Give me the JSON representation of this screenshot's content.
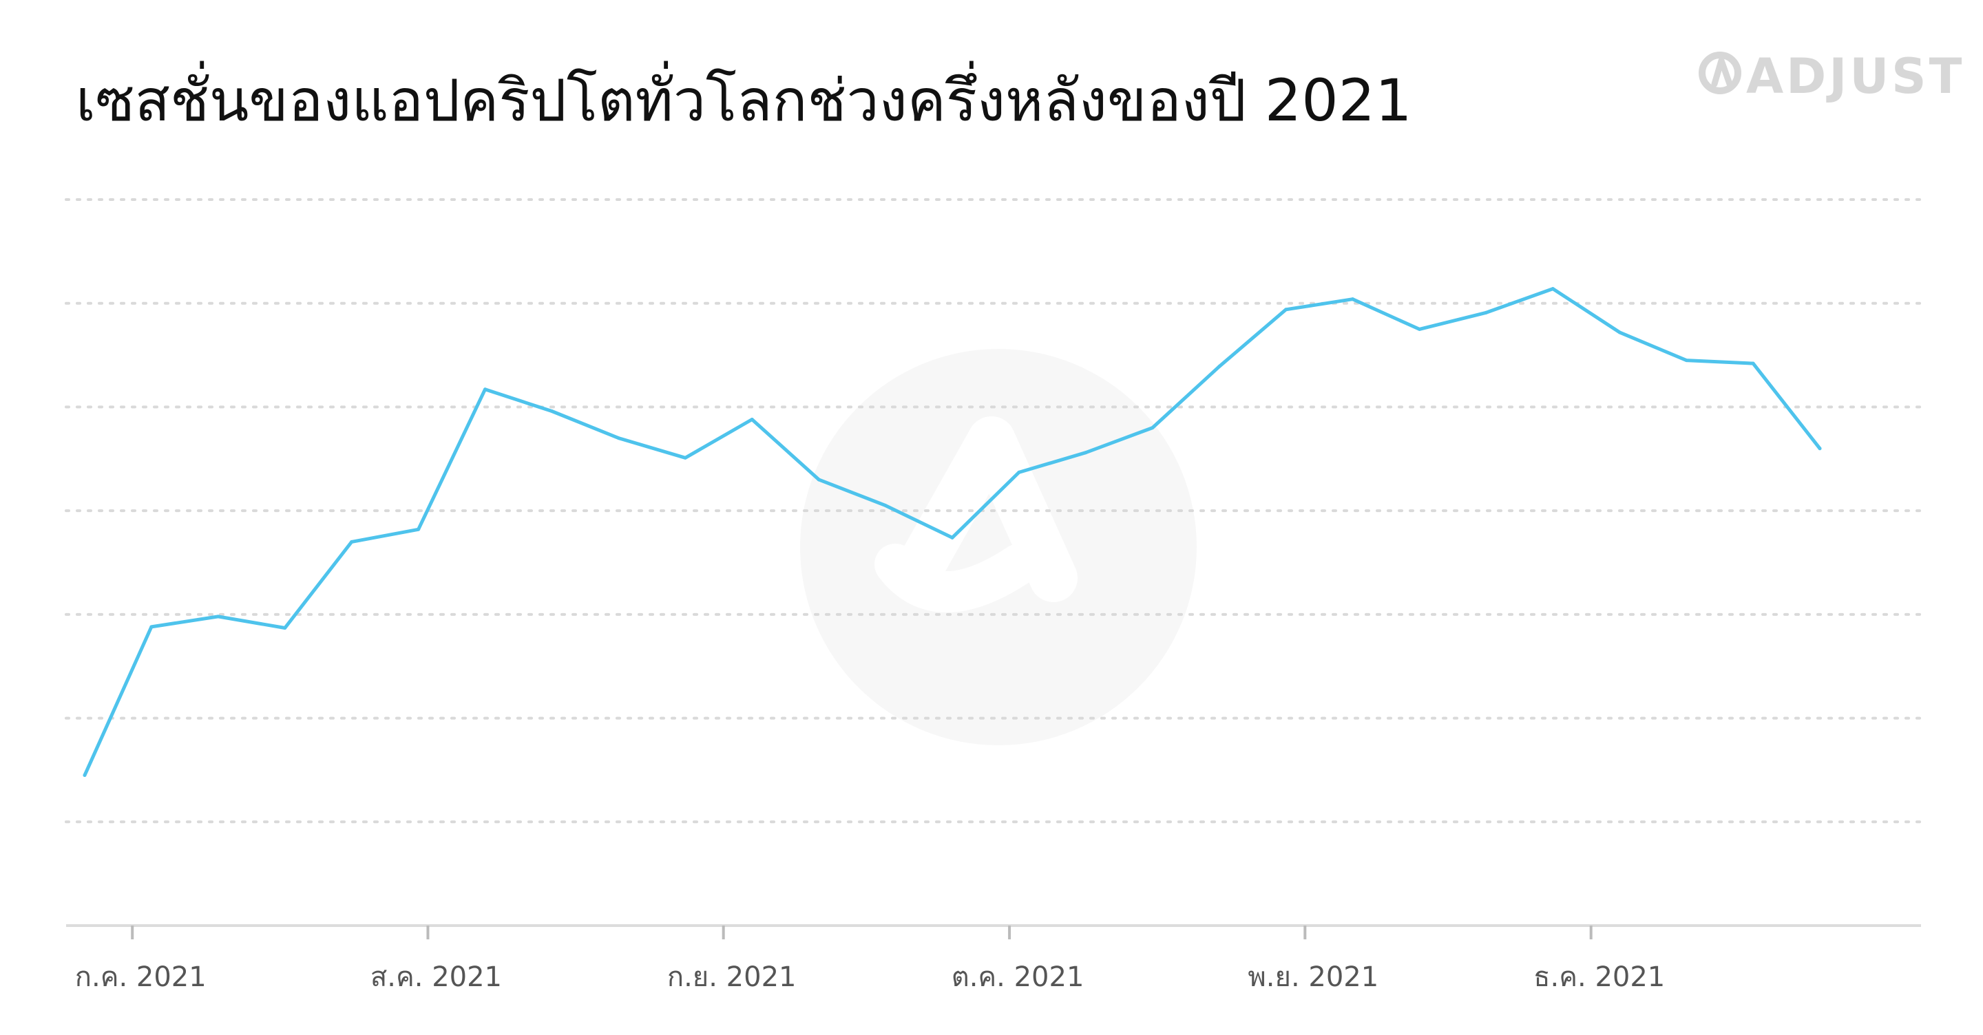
{
  "chart_data": {
    "type": "line",
    "title": "เซสชั่นของแอปคริปโตทั่วโลกช่วงครึ่งหลังของปี 2021",
    "brand": "ADJUST",
    "xlabel": "",
    "ylabel": "",
    "x_ticks": [
      "ก.ค. 2021",
      "ส.ค. 2021",
      "ก.ย. 2021",
      "ต.ค. 2021",
      "พ.ย. 2021",
      "ธ.ค. 2021"
    ],
    "x_range": [
      "2021-06-26",
      "2021-12-25"
    ],
    "ylim": [
      0,
      7
    ],
    "y_gridlines": 7,
    "grid": true,
    "legend": "none",
    "line_color": "#4ec3ec",
    "series": [
      {
        "x": [
          "2021-06-26",
          "2021-07-03",
          "2021-07-10",
          "2021-07-17",
          "2021-07-24",
          "2021-07-31",
          "2021-08-07",
          "2021-08-14",
          "2021-08-21",
          "2021-08-28",
          "2021-09-04",
          "2021-09-11",
          "2021-09-18",
          "2021-09-25",
          "2021-10-02",
          "2021-10-09",
          "2021-10-16",
          "2021-10-23",
          "2021-10-30",
          "2021-11-06",
          "2021-11-13",
          "2021-11-20",
          "2021-11-27",
          "2021-12-04",
          "2021-12-11",
          "2021-12-18",
          "2021-12-25"
        ],
        "values": [
          1.45,
          2.88,
          2.98,
          2.87,
          3.7,
          3.82,
          5.17,
          4.96,
          4.7,
          4.51,
          4.88,
          4.3,
          4.05,
          3.74,
          4.37,
          4.56,
          4.8,
          5.39,
          5.94,
          6.04,
          5.75,
          5.91,
          6.14,
          5.72,
          5.45,
          5.42,
          4.6
        ]
      }
    ]
  }
}
